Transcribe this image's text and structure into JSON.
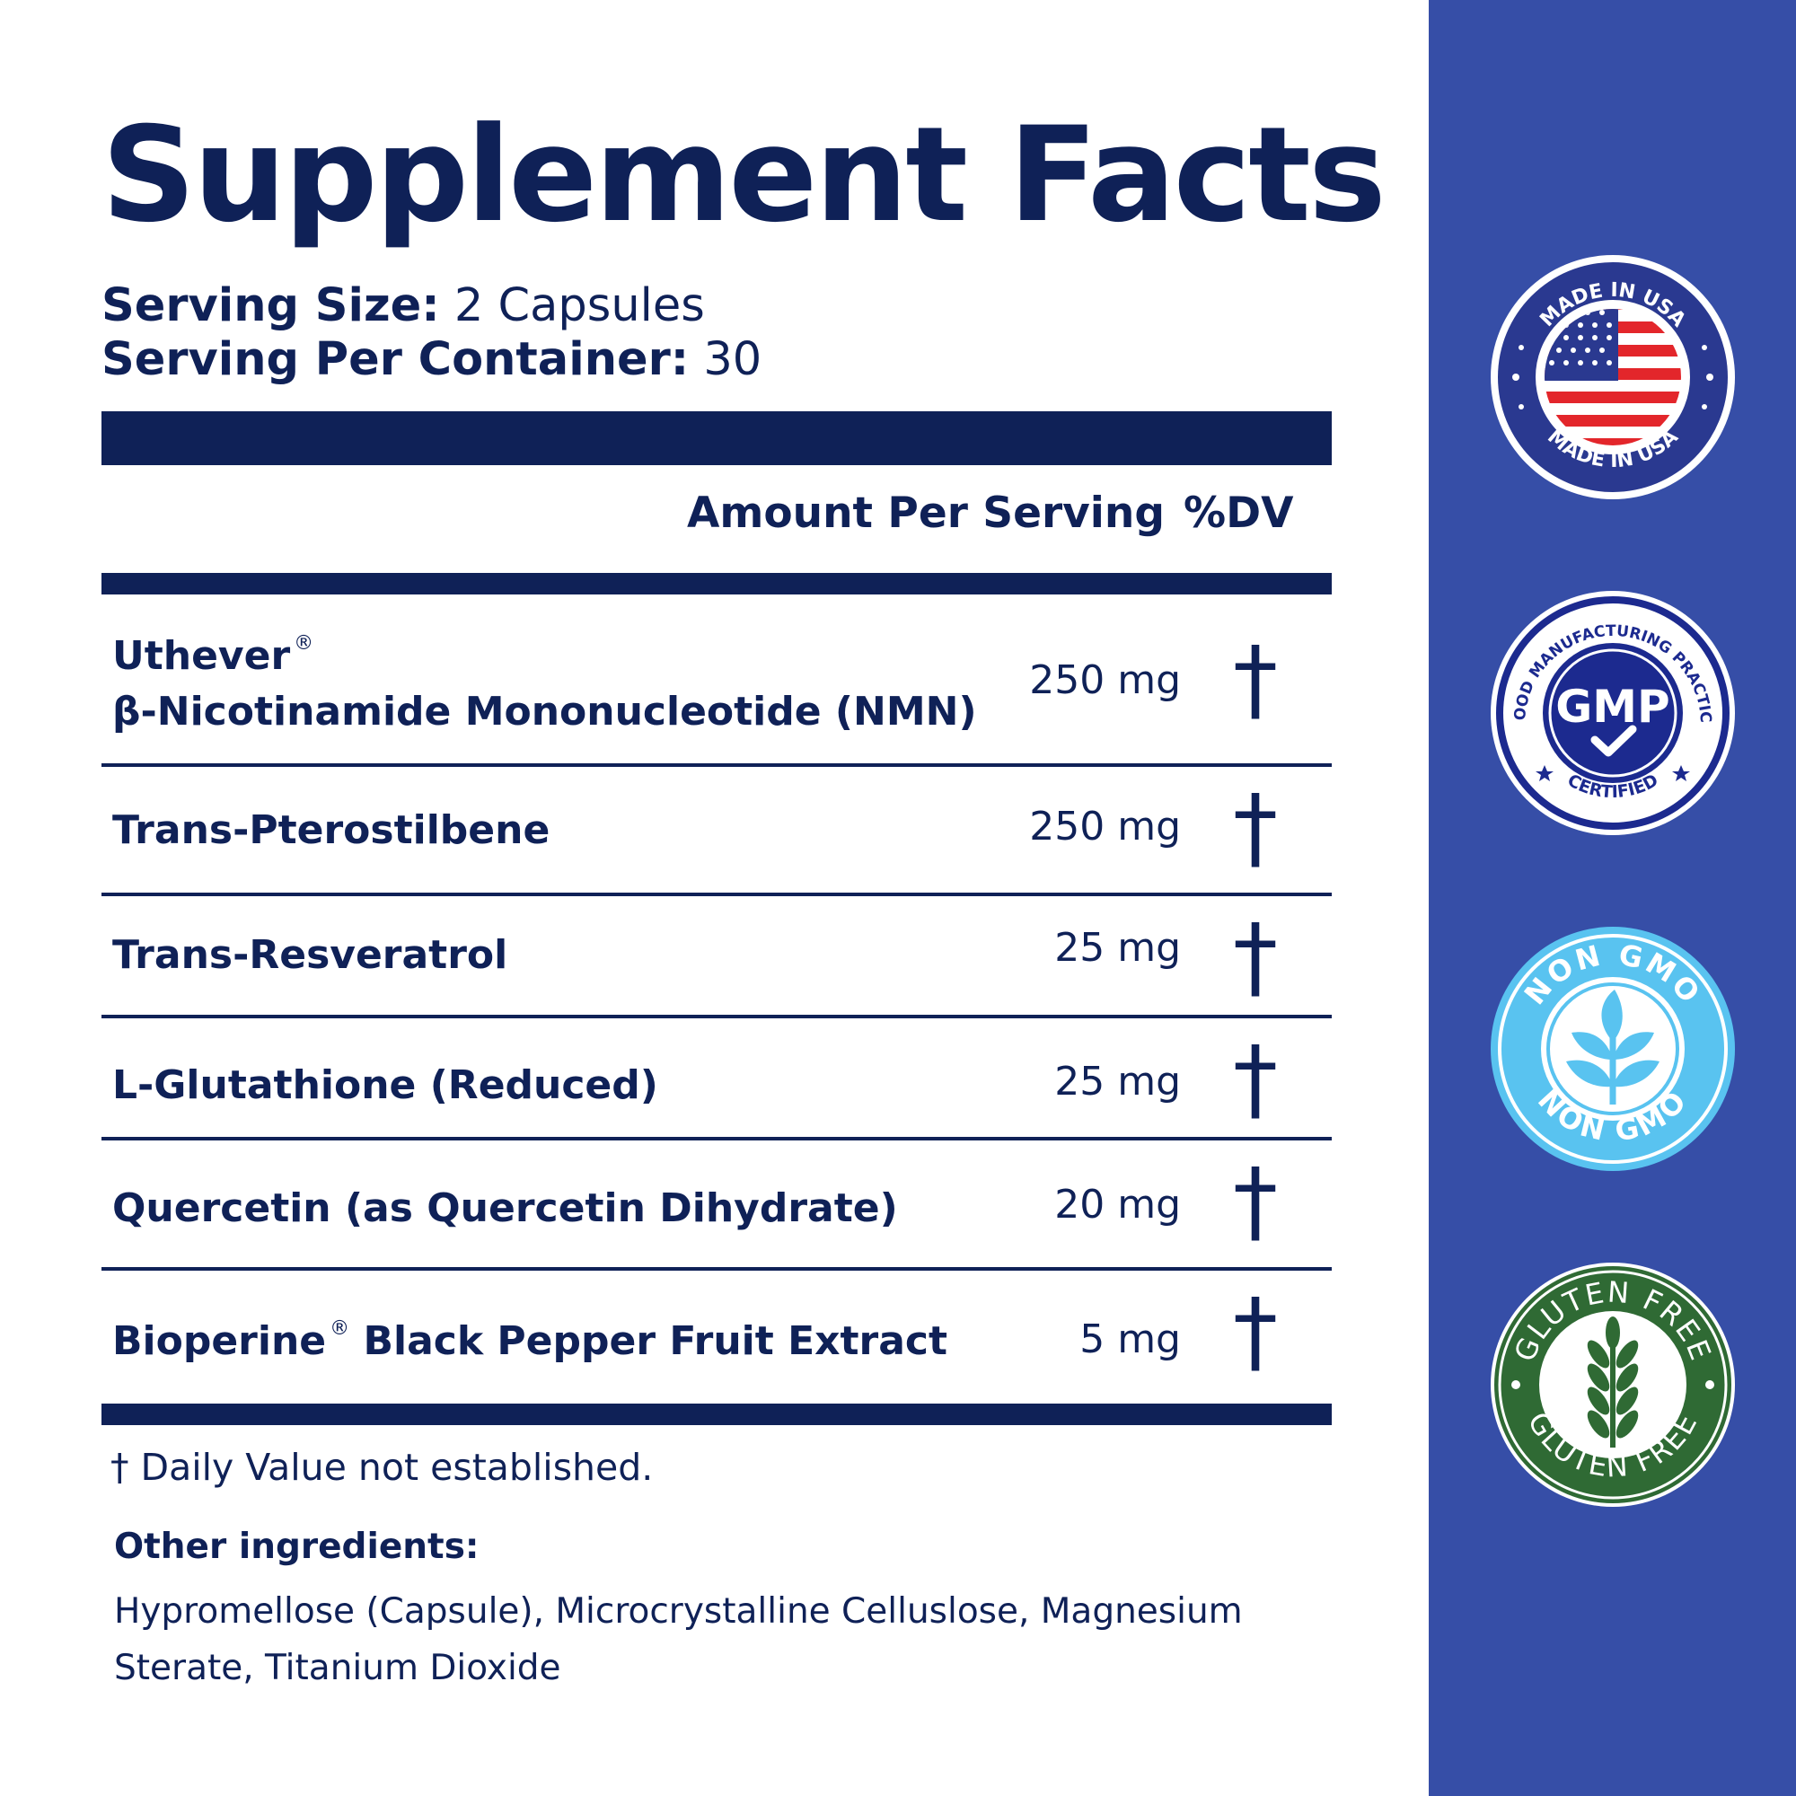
{
  "title": "Supplement Facts",
  "serving": {
    "size_label": "Serving Size:",
    "size_value": " 2 Capsules",
    "container_label": "Serving Per Container:",
    "container_value": " 30"
  },
  "table": {
    "header_amount": "Amount Per Serving",
    "header_dv": "%DV",
    "rows": [
      {
        "name_line1": "Uthever",
        "name_line2": "β-Nicotinamide Mononucleotide (NMN)",
        "amount": "250 mg",
        "dv": "†"
      },
      {
        "name": "Trans-Pterostilbene",
        "amount": "250 mg",
        "dv": "†"
      },
      {
        "name": "Trans-Resveratrol",
        "amount": "25 mg",
        "dv": "†"
      },
      {
        "name": "L-Glutathione (Reduced)",
        "amount": "25 mg",
        "dv": "†"
      },
      {
        "name": "Quercetin (as Quercetin Dihydrate)",
        "amount": "20 mg",
        "dv": "†"
      },
      {
        "name_a": "Bioperine",
        "name_b": " Black Pepper Fruit Extract",
        "amount": "5 mg",
        "dv": "†"
      }
    ],
    "registered_mark": "®"
  },
  "footnote": "† Daily Value not established.",
  "other_ingredients": {
    "label": "Other ingredients:",
    "text": "Hypromellose (Capsule), Microcrystalline Celluslose, Magnesium Sterate, Titanium Dioxide"
  },
  "badges": {
    "usa": {
      "top_text": "MADE IN USA",
      "bottom_text": "MADE IN USA",
      "icon": "us-flag-icon"
    },
    "gmp": {
      "top_text": "GOOD MANUFACTURING PRACTICE",
      "center_text": "GMP",
      "bottom_text": "CERTIFIED",
      "icon": "checkmark-icon"
    },
    "nongmo": {
      "top_text": "NON GMO",
      "bottom_text": "NON GMO",
      "icon": "leaf-sprout-icon"
    },
    "gluten": {
      "top_text": "GLUTEN FREE",
      "bottom_text": "GLUTEN FREE",
      "icon": "wheat-icon"
    }
  },
  "colors": {
    "navy": "#0f2157",
    "sidebar_blue": "#364ea7",
    "nongmo_blue": "#59c3f0",
    "gluten_green": "#2f6a34",
    "flag_red": "#e3262b"
  }
}
